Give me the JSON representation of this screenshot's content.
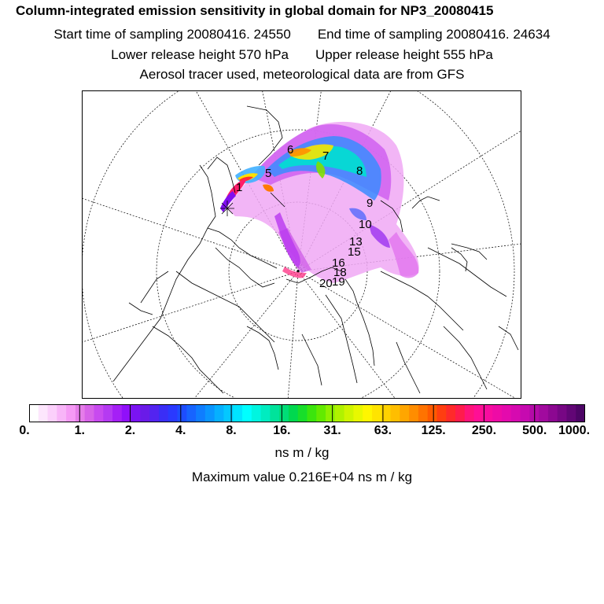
{
  "header": {
    "title": "Column-integrated emission sensitivity in global domain for NP3_20080415",
    "start_label": "Start time of sampling 20080416. 24550",
    "end_label": "End time of sampling 20080416. 24634",
    "lower_label": "Lower release height  570 hPa",
    "upper_label": "Upper release height  555 hPa",
    "tracer_note": "Aerosol tracer used, meteorological data are from GFS"
  },
  "map": {
    "projection": "north-polar-stereographic",
    "day_markers": [
      "1",
      "5",
      "6",
      "7",
      "8",
      "9",
      "10",
      "13",
      "15",
      "16",
      "18",
      "19",
      "20"
    ]
  },
  "colorbar": {
    "tick_labels": [
      "0.",
      "1.",
      "2.",
      "4.",
      "8.",
      "16.",
      "31.",
      "63.",
      "125.",
      "250.",
      "500.",
      "1000."
    ],
    "colors": [
      "#ffffff",
      "#fde6fd",
      "#fbd0fb",
      "#f8b5f8",
      "#f59af5",
      "#e57de9",
      "#d763e8",
      "#c84aef",
      "#b53af2",
      "#a520f6",
      "#9010fa",
      "#7a14f2",
      "#6a1be8",
      "#5324f0",
      "#3a2ef6",
      "#2a39ff",
      "#1d4dff",
      "#1764ff",
      "#0f7dff",
      "#0a95ff",
      "#06b0ff",
      "#04c8ff",
      "#00e4ff",
      "#00ffff",
      "#00f5e0",
      "#00ecc0",
      "#00e39b",
      "#00dd77",
      "#00d84f",
      "#18de2a",
      "#3be50d",
      "#62ea00",
      "#8ef000",
      "#b0f200",
      "#cff500",
      "#e8f800",
      "#fff600",
      "#ffe400",
      "#ffd200",
      "#ffbe00",
      "#ffa600",
      "#ff8d00",
      "#ff7300",
      "#ff5a00",
      "#ff3e10",
      "#ff2a2a",
      "#ff1c4c",
      "#ff147a",
      "#ff0f95",
      "#f80d9f",
      "#ee0ba6",
      "#e40aad",
      "#d60ab0",
      "#c60ab0",
      "#b40aa8",
      "#a10a9e",
      "#8c0891",
      "#770784",
      "#620676",
      "#4d0566"
    ]
  },
  "units": "ns m / kg",
  "max_value": "Maximum value  0.216E+04 ns m / kg"
}
